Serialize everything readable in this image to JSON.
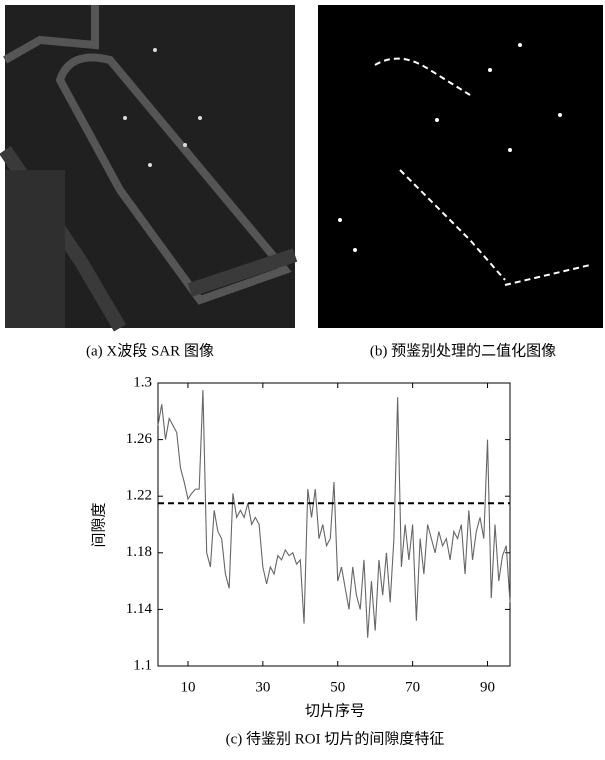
{
  "figure": {
    "panels": [
      {
        "caption": "(a) X波段 SAR 图像"
      },
      {
        "caption": "(b) 预鉴别处理的二值化图像"
      }
    ]
  },
  "chart_data": {
    "type": "line",
    "caption": "(c) 待鉴别 ROI 切片的间隙度特征",
    "x_label": "切片序号",
    "y_label": "间隙度",
    "x": [
      2,
      3,
      4,
      5,
      6,
      7,
      8,
      9,
      10,
      11,
      12,
      13,
      14,
      15,
      16,
      17,
      18,
      19,
      20,
      21,
      22,
      23,
      24,
      25,
      26,
      27,
      28,
      29,
      30,
      31,
      32,
      33,
      34,
      35,
      36,
      37,
      38,
      39,
      40,
      41,
      42,
      43,
      44,
      45,
      46,
      47,
      48,
      49,
      50,
      51,
      52,
      53,
      54,
      55,
      56,
      57,
      58,
      59,
      60,
      61,
      62,
      63,
      64,
      65,
      66,
      67,
      68,
      69,
      70,
      71,
      72,
      73,
      74,
      75,
      76,
      77,
      78,
      79,
      80,
      81,
      82,
      83,
      84,
      85,
      86,
      87,
      88,
      89,
      90,
      91,
      92,
      93,
      94,
      95,
      96
    ],
    "series": [
      {
        "color": "#666666",
        "values": [
          1.27,
          1.285,
          1.26,
          1.275,
          1.27,
          1.265,
          1.24,
          1.23,
          1.218,
          1.222,
          1.225,
          1.225,
          1.295,
          1.18,
          1.17,
          1.21,
          1.195,
          1.19,
          1.165,
          1.155,
          1.222,
          1.205,
          1.21,
          1.205,
          1.215,
          1.2,
          1.205,
          1.2,
          1.17,
          1.158,
          1.17,
          1.165,
          1.178,
          1.175,
          1.182,
          1.178,
          1.18,
          1.172,
          1.175,
          1.13,
          1.225,
          1.205,
          1.225,
          1.19,
          1.2,
          1.185,
          1.19,
          1.23,
          1.16,
          1.17,
          1.155,
          1.14,
          1.17,
          1.15,
          1.14,
          1.175,
          1.12,
          1.16,
          1.125,
          1.175,
          1.15,
          1.18,
          1.145,
          1.19,
          1.29,
          1.17,
          1.2,
          1.175,
          1.2,
          1.132,
          1.19,
          1.165,
          1.2,
          1.19,
          1.18,
          1.195,
          1.185,
          1.19,
          1.175,
          1.195,
          1.19,
          1.2,
          1.165,
          1.21,
          1.175,
          1.195,
          1.205,
          1.19,
          1.26,
          1.148,
          1.2,
          1.16,
          1.178,
          1.185,
          1.145
        ]
      }
    ],
    "threshold": {
      "value": 1.215,
      "color": "#000000",
      "style": "dashed"
    },
    "xlim": [
      2,
      96
    ],
    "xticks": [
      10,
      30,
      50,
      70,
      90
    ],
    "ylim": [
      1.1,
      1.3
    ],
    "yticks": [
      1.1,
      1.14,
      1.18,
      1.22,
      1.26,
      1.3
    ]
  }
}
